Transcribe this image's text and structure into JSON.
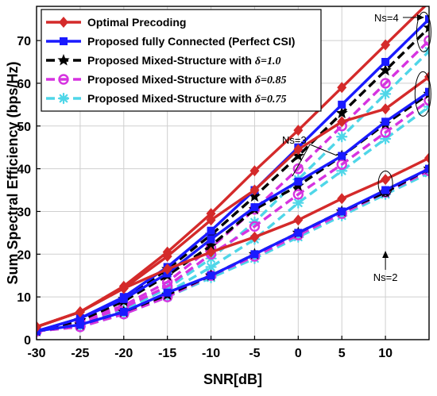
{
  "chart_data": {
    "type": "line",
    "xlabel": "SNR[dB]",
    "ylabel": "Sum Spectral Efficiency (bps/Hz)",
    "xlim": [
      -30,
      15
    ],
    "ylim": [
      0,
      78
    ],
    "xticks": [
      -30,
      -25,
      -20,
      -15,
      -10,
      -5,
      0,
      5,
      10
    ],
    "yticks": [
      0,
      10,
      20,
      30,
      40,
      50,
      60,
      70
    ],
    "x": [
      -30,
      -25,
      -20,
      -15,
      -10,
      -5,
      0,
      5,
      10,
      15
    ],
    "grid": true,
    "legend_position": "top-left",
    "series": [
      {
        "name": "Optimal Precoding",
        "legend_main": "Optimal Precoding",
        "legend_delta": "",
        "color": "#d42a2a",
        "marker": "diamond",
        "dash": "solid",
        "groups": [
          {
            "ns": 4,
            "values": [
              3,
              6.5,
              12.5,
              20.5,
              29.5,
              39.5,
              49,
              59,
              69,
              79
            ]
          },
          {
            "ns": 3,
            "values": [
              3,
              6.5,
              12,
              19.5,
              28,
              35,
              44.5,
              51,
              54,
              61.5
            ]
          },
          {
            "ns": 2,
            "values": [
              3,
              6.5,
              12,
              16.5,
              20.5,
              24,
              28,
              33,
              37.5,
              42.5
            ]
          }
        ]
      },
      {
        "name": "Proposed fully Connected (Perfect CSI)",
        "legend_main": "Proposed fully Connected (Perfect CSI)",
        "legend_delta": "",
        "color": "#1a1aff",
        "marker": "square",
        "dash": "solid",
        "groups": [
          {
            "ns": 4,
            "values": [
              2,
              5,
              10,
              17,
              25.5,
              35,
              45,
              55,
              65,
              75
            ]
          },
          {
            "ns": 3,
            "values": [
              2,
              5,
              9.5,
              15.5,
              23.5,
              31,
              37,
              43,
              51,
              58
            ]
          },
          {
            "ns": 2,
            "values": [
              2,
              3.5,
              6.5,
              11,
              15,
              20,
              25,
              30,
              35,
              40
            ]
          }
        ]
      },
      {
        "name": "Proposed Mixed-Structure with δ=1.0",
        "legend_main": "Proposed Mixed-Structure with ",
        "legend_delta": "δ=1.0",
        "color": "#000000",
        "marker": "star",
        "dash": "dashed",
        "groups": [
          {
            "ns": 4,
            "values": [
              2,
              4.5,
              9.5,
              16.5,
              24.5,
              33.5,
              43,
              53,
              63,
              73
            ]
          },
          {
            "ns": 3,
            "values": [
              2,
              4.5,
              9,
              15,
              22,
              30.5,
              36,
              43,
              50.5,
              57.5
            ]
          },
          {
            "ns": 2,
            "values": [
              2,
              3.5,
              6.5,
              10.5,
              15,
              20,
              25,
              30,
              34.5,
              40
            ]
          }
        ]
      },
      {
        "name": "Proposed Mixed-Structure with δ=0.85",
        "legend_main": "Proposed Mixed-Structure with ",
        "legend_delta": "δ=0.85",
        "color": "#d633e0",
        "marker": "circle",
        "dash": "dashed",
        "groups": [
          {
            "ns": 4,
            "values": [
              2,
              4.5,
              8,
              13.5,
              21.5,
              30.5,
              40,
              50,
              60,
              70
            ]
          },
          {
            "ns": 3,
            "values": [
              2,
              4,
              7.5,
              12.5,
              20,
              26.5,
              34,
              41,
              48.5,
              56
            ]
          },
          {
            "ns": 2,
            "values": [
              2,
              3,
              6,
              10,
              15,
              19.5,
              24.5,
              29.5,
              34.5,
              39.5
            ]
          }
        ]
      },
      {
        "name": "Proposed Mixed-Structure with δ=0.75",
        "legend_main": "Proposed Mixed-Structure with ",
        "legend_delta": "δ=0.75",
        "color": "#4fd6e8",
        "marker": "asterisk",
        "dash": "dashed",
        "groups": [
          {
            "ns": 4,
            "values": [
              2,
              4,
              7,
              12,
              19,
              27.5,
              37.5,
              47.5,
              57.5,
              67.5
            ]
          },
          {
            "ns": 3,
            "values": [
              2,
              3.5,
              6.5,
              11,
              17,
              23.5,
              32,
              39.5,
              47,
              54.5
            ]
          },
          {
            "ns": 2,
            "values": [
              2,
              3,
              6,
              10,
              14.5,
              19,
              24,
              29,
              34,
              39
            ]
          }
        ]
      }
    ],
    "annotations": [
      {
        "text": "Ns=4",
        "target_x": 12.8,
        "target_y": 78
      },
      {
        "text": "Ns=3",
        "target_x": 0,
        "target_y": 36
      },
      {
        "text": "Ns=2",
        "target_x": 10,
        "target_y": 34.5
      }
    ]
  }
}
